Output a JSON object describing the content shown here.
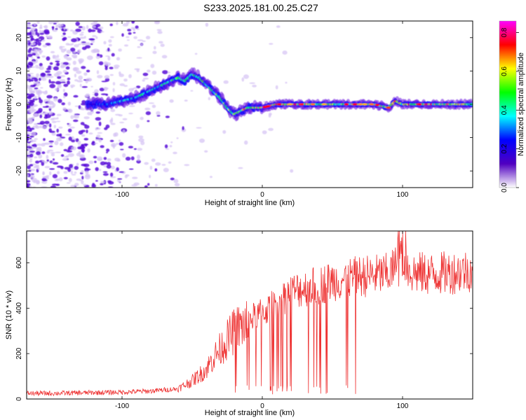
{
  "title": "S233.2025.181.00.25.C27",
  "colors": {
    "snr_line": "#ee3333",
    "frame": "#000000",
    "speckle_dark": "#5a10d8",
    "speckle_light": "#d4c2f4"
  },
  "colorbar": {
    "label": "Normalized spectral amplitude",
    "ticks": [
      0.0,
      0.2,
      0.4,
      0.6,
      0.8
    ],
    "tick_labels": [
      "0.0",
      "0.2",
      "0.4",
      "0.6",
      "0.8"
    ],
    "range": [
      0,
      0.86
    ],
    "colormap": [
      "#ffffff",
      "#5000c0",
      "#0000ff",
      "#00ffff",
      "#00ff00",
      "#ffff00",
      "#ff0000",
      "#ff00ff"
    ]
  },
  "chart_data": [
    {
      "type": "heatmap",
      "xlabel": "Height of straight line (km)",
      "ylabel": "Frequency (Hz)",
      "xlim": [
        -168,
        150
      ],
      "ylim": [
        -25,
        25
      ],
      "xticks": [
        -100,
        0,
        100
      ],
      "xtick_labels": [
        "-100",
        "0",
        "100"
      ],
      "yticks": [
        -20,
        -10,
        0,
        10,
        20
      ],
      "ytick_labels": [
        "-20",
        "-10",
        "0",
        "10",
        "20"
      ],
      "ridge_frequency": {
        "x": [
          -120,
          -110,
          -100,
          -90,
          -80,
          -70,
          -60,
          -55,
          -50,
          -45,
          -40,
          -35,
          -30,
          -25,
          -20,
          -15,
          -10,
          -5,
          0,
          10,
          20,
          40,
          60,
          80,
          90,
          95,
          100,
          120,
          150
        ],
        "y": [
          0,
          0,
          1,
          2,
          4,
          6,
          8,
          7,
          9,
          8,
          6,
          4,
          2,
          -1,
          -3,
          -2,
          -1,
          -1,
          -1,
          0,
          0,
          0,
          0,
          0,
          -1,
          1,
          0,
          0,
          0
        ]
      },
      "ridge_amplitude": {
        "x": [
          -120,
          -100,
          -80,
          -60,
          -40,
          -20,
          0,
          20,
          40,
          60,
          80,
          100,
          120,
          150
        ],
        "y": [
          0.2,
          0.3,
          0.35,
          0.4,
          0.4,
          0.45,
          0.6,
          0.55,
          0.5,
          0.45,
          0.5,
          0.55,
          0.55,
          0.45
        ]
      }
    },
    {
      "type": "line",
      "xlabel": "Height of straight line (km)",
      "ylabel": "SNR (10 * v/v)",
      "xlim": [
        -168,
        150
      ],
      "ylim": [
        0,
        740
      ],
      "xticks": [
        -100,
        0,
        100
      ],
      "xtick_labels": [
        "-100",
        "0",
        "100"
      ],
      "yticks": [
        0,
        200,
        400,
        600
      ],
      "ytick_labels": [
        "0",
        "200",
        "400",
        "600"
      ],
      "series": [
        {
          "x": [
            -168,
            -150,
            -120,
            -100,
            -80,
            -70,
            -60,
            -50,
            -40,
            -35,
            -30,
            -25,
            -20,
            -15,
            -10,
            -5,
            0,
            10,
            20,
            30,
            40,
            50,
            60,
            70,
            80,
            90,
            95,
            100,
            105,
            110,
            120,
            130,
            140,
            150
          ],
          "values": [
            25,
            25,
            28,
            30,
            35,
            40,
            45,
            80,
            130,
            180,
            220,
            260,
            300,
            320,
            340,
            370,
            380,
            420,
            470,
            490,
            500,
            520,
            530,
            540,
            545,
            550,
            580,
            600,
            560,
            555,
            550,
            555,
            560,
            570
          ]
        }
      ]
    }
  ]
}
